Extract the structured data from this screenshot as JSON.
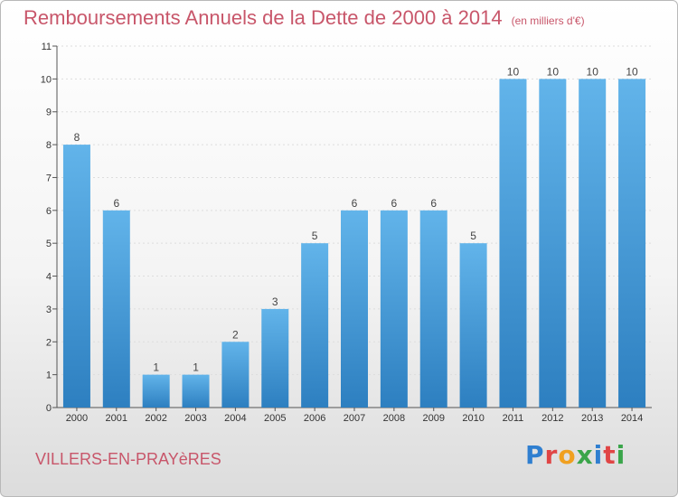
{
  "title": "Remboursements Annuels de la Dette de 2000 à 2014",
  "unit_note": "(en milliers d'€)",
  "location": "VILLERS-EN-PRAYèRES",
  "logo": {
    "text": "Proxiti",
    "colors": [
      "#2f7fd0",
      "#e04545",
      "#f0a020",
      "#3aa54a",
      "#2f7fd0",
      "#e04545",
      "#3aa54a"
    ]
  },
  "colors": {
    "bar_light": "#62b4ea",
    "bar_dark": "#2d7fc0",
    "title": "#c8566a"
  },
  "chart_data": {
    "type": "bar",
    "categories": [
      "2000",
      "2001",
      "2002",
      "2003",
      "2004",
      "2005",
      "2006",
      "2007",
      "2008",
      "2009",
      "2010",
      "2011",
      "2012",
      "2013",
      "2014"
    ],
    "values": [
      8,
      6,
      1,
      1,
      2,
      3,
      5,
      6,
      6,
      6,
      5,
      10,
      10,
      10,
      10
    ],
    "ylim": [
      0,
      11
    ],
    "yticks": [
      0,
      1,
      2,
      3,
      4,
      5,
      6,
      7,
      8,
      9,
      10,
      11
    ],
    "grid": true
  }
}
